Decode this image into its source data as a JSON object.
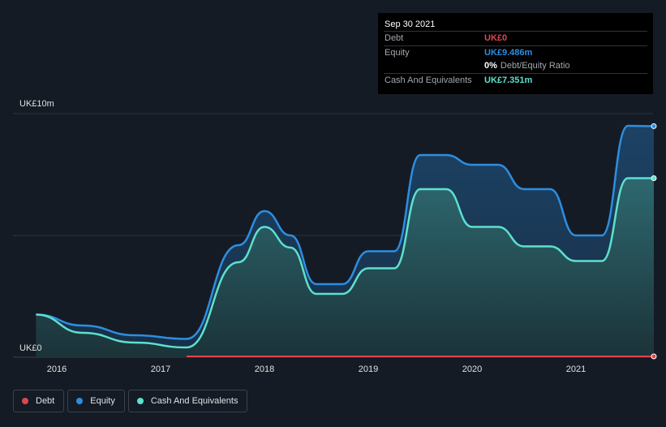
{
  "colors": {
    "debt": "#e0454f",
    "equity": "#2d8ee0",
    "cash": "#5ee0cc",
    "background": "#151b25"
  },
  "tooltip": {
    "date": "Sep 30 2021",
    "debt_label": "Debt",
    "debt_value": "UK£0",
    "equity_label": "Equity",
    "equity_value": "UK£9.486m",
    "ratio_pct": "0%",
    "ratio_label": "Debt/Equity Ratio",
    "cash_label": "Cash And Equivalents",
    "cash_value": "UK£7.351m"
  },
  "legend": {
    "debt": "Debt",
    "equity": "Equity",
    "cash": "Cash And Equivalents"
  },
  "chart_data": {
    "type": "area",
    "title": "",
    "xlabel": "",
    "ylabel": "",
    "ylim": [
      0,
      10
    ],
    "y_unit": "UK£m",
    "y_tick_labels": [
      {
        "value": 10,
        "label": "UK£10m"
      },
      {
        "value": 0,
        "label": "UK£0"
      }
    ],
    "x_ticks": [
      {
        "x": 2016.0,
        "label": "2016"
      },
      {
        "x": 2017.0,
        "label": "2017"
      },
      {
        "x": 2018.0,
        "label": "2018"
      },
      {
        "x": 2019.0,
        "label": "2019"
      },
      {
        "x": 2020.0,
        "label": "2020"
      },
      {
        "x": 2021.0,
        "label": "2021"
      }
    ],
    "xlim": [
      2015.55,
      2021.75
    ],
    "series": [
      {
        "name": "Equity",
        "key": "equity",
        "points": [
          [
            2015.8,
            1.75
          ],
          [
            2016.25,
            1.3
          ],
          [
            2016.75,
            0.9
          ],
          [
            2017.25,
            0.75
          ],
          [
            2017.75,
            4.6
          ],
          [
            2018.0,
            6.0
          ],
          [
            2018.25,
            5.0
          ],
          [
            2018.5,
            3.0
          ],
          [
            2018.75,
            3.0
          ],
          [
            2019.0,
            4.35
          ],
          [
            2019.25,
            4.35
          ],
          [
            2019.5,
            8.3
          ],
          [
            2019.75,
            8.3
          ],
          [
            2020.0,
            7.9
          ],
          [
            2020.25,
            7.9
          ],
          [
            2020.5,
            6.9
          ],
          [
            2020.75,
            6.9
          ],
          [
            2021.0,
            5.0
          ],
          [
            2021.25,
            5.0
          ],
          [
            2021.5,
            9.5
          ],
          [
            2021.75,
            9.486
          ]
        ]
      },
      {
        "name": "Cash And Equivalents",
        "key": "cash",
        "points": [
          [
            2015.8,
            1.75
          ],
          [
            2016.25,
            1.0
          ],
          [
            2016.75,
            0.6
          ],
          [
            2017.25,
            0.4
          ],
          [
            2017.75,
            3.9
          ],
          [
            2018.0,
            5.35
          ],
          [
            2018.25,
            4.5
          ],
          [
            2018.5,
            2.6
          ],
          [
            2018.75,
            2.6
          ],
          [
            2019.0,
            3.65
          ],
          [
            2019.25,
            3.65
          ],
          [
            2019.5,
            6.9
          ],
          [
            2019.75,
            6.9
          ],
          [
            2020.0,
            5.35
          ],
          [
            2020.25,
            5.35
          ],
          [
            2020.5,
            4.55
          ],
          [
            2020.75,
            4.55
          ],
          [
            2021.0,
            3.95
          ],
          [
            2021.25,
            3.95
          ],
          [
            2021.5,
            7.35
          ],
          [
            2021.75,
            7.351
          ]
        ]
      },
      {
        "name": "Debt",
        "key": "debt",
        "points": [
          [
            2017.25,
            0
          ],
          [
            2021.75,
            0
          ]
        ]
      }
    ]
  }
}
